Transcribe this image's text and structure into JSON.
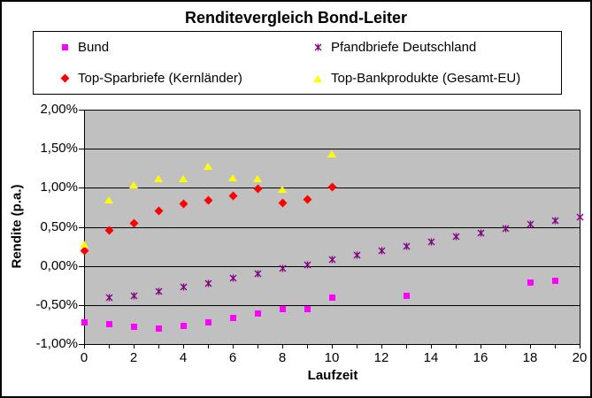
{
  "window": {
    "title": "Renditevergleich Bond-Leiter"
  },
  "chart_data": {
    "type": "scatter",
    "title": "Renditevergleich Bond-Leiter",
    "xlabel": "Laufzeit",
    "ylabel": "Rendite (p.a.)",
    "xlim": [
      0,
      20
    ],
    "ylim": [
      -1.0,
      2.0
    ],
    "grid": true,
    "plot_bg_color": "#c0c0c0",
    "legend_position": "top",
    "y_ticks": [
      {
        "value": 2.0,
        "label": "2,00%"
      },
      {
        "value": 1.5,
        "label": "1,50%"
      },
      {
        "value": 1.0,
        "label": "1,00%"
      },
      {
        "value": 0.5,
        "label": "0,50%"
      },
      {
        "value": 0.0,
        "label": "0,00%"
      },
      {
        "value": -0.5,
        "label": "-0,50%"
      },
      {
        "value": -1.0,
        "label": "-1,00%"
      }
    ],
    "x_major_ticks": [
      {
        "value": 0,
        "label": "0"
      },
      {
        "value": 2,
        "label": "2"
      },
      {
        "value": 4,
        "label": "4"
      },
      {
        "value": 6,
        "label": "6"
      },
      {
        "value": 8,
        "label": "8"
      },
      {
        "value": 10,
        "label": "10"
      },
      {
        "value": 12,
        "label": "12"
      },
      {
        "value": 14,
        "label": "14"
      },
      {
        "value": 16,
        "label": "16"
      },
      {
        "value": 18,
        "label": "18"
      },
      {
        "value": 20,
        "label": "20"
      }
    ],
    "x_minor_tick_step": 1,
    "series": [
      {
        "name": "Bund",
        "marker": "square",
        "color": "#ff00ff",
        "points": [
          [
            0,
            -0.72
          ],
          [
            1,
            -0.75
          ],
          [
            2,
            -0.78
          ],
          [
            3,
            -0.8
          ],
          [
            4,
            -0.77
          ],
          [
            5,
            -0.72
          ],
          [
            6,
            -0.67
          ],
          [
            7,
            -0.61
          ],
          [
            8,
            -0.55
          ],
          [
            9,
            -0.55
          ],
          [
            10,
            -0.41
          ],
          [
            13,
            -0.38
          ],
          [
            18,
            -0.21
          ],
          [
            19,
            -0.19
          ]
        ]
      },
      {
        "name": "Pfandbriefe Deutschland",
        "marker": "star",
        "color": "#800080",
        "points": [
          [
            1,
            -0.41
          ],
          [
            2,
            -0.38
          ],
          [
            3,
            -0.33
          ],
          [
            4,
            -0.27
          ],
          [
            5,
            -0.22
          ],
          [
            6,
            -0.16
          ],
          [
            7,
            -0.1
          ],
          [
            8,
            -0.03
          ],
          [
            9,
            0.01
          ],
          [
            10,
            0.08
          ],
          [
            11,
            0.14
          ],
          [
            12,
            0.2
          ],
          [
            13,
            0.25
          ],
          [
            14,
            0.31
          ],
          [
            15,
            0.37
          ],
          [
            16,
            0.42
          ],
          [
            17,
            0.48
          ],
          [
            18,
            0.53
          ],
          [
            19,
            0.58
          ],
          [
            20,
            0.63
          ]
        ]
      },
      {
        "name": "Top-Sparbriefe (Kernländer)",
        "marker": "diamond",
        "color": "#ff0000",
        "points": [
          [
            0,
            0.2
          ],
          [
            1,
            0.45
          ],
          [
            2,
            0.55
          ],
          [
            3,
            0.7
          ],
          [
            4,
            0.8
          ],
          [
            5,
            0.84
          ],
          [
            6,
            0.9
          ],
          [
            7,
            0.99
          ],
          [
            8,
            0.81
          ],
          [
            9,
            0.85
          ],
          [
            10,
            1.01
          ]
        ]
      },
      {
        "name": "Top-Bankprodukte (Gesamt-EU)",
        "marker": "triangle",
        "color": "#ffff00",
        "points": [
          [
            0,
            0.28
          ],
          [
            1,
            0.85
          ],
          [
            2,
            1.04
          ],
          [
            3,
            1.12
          ],
          [
            4,
            1.12
          ],
          [
            5,
            1.27
          ],
          [
            6,
            1.13
          ],
          [
            7,
            1.12
          ],
          [
            8,
            0.98
          ],
          [
            10,
            1.43
          ]
        ]
      }
    ]
  }
}
